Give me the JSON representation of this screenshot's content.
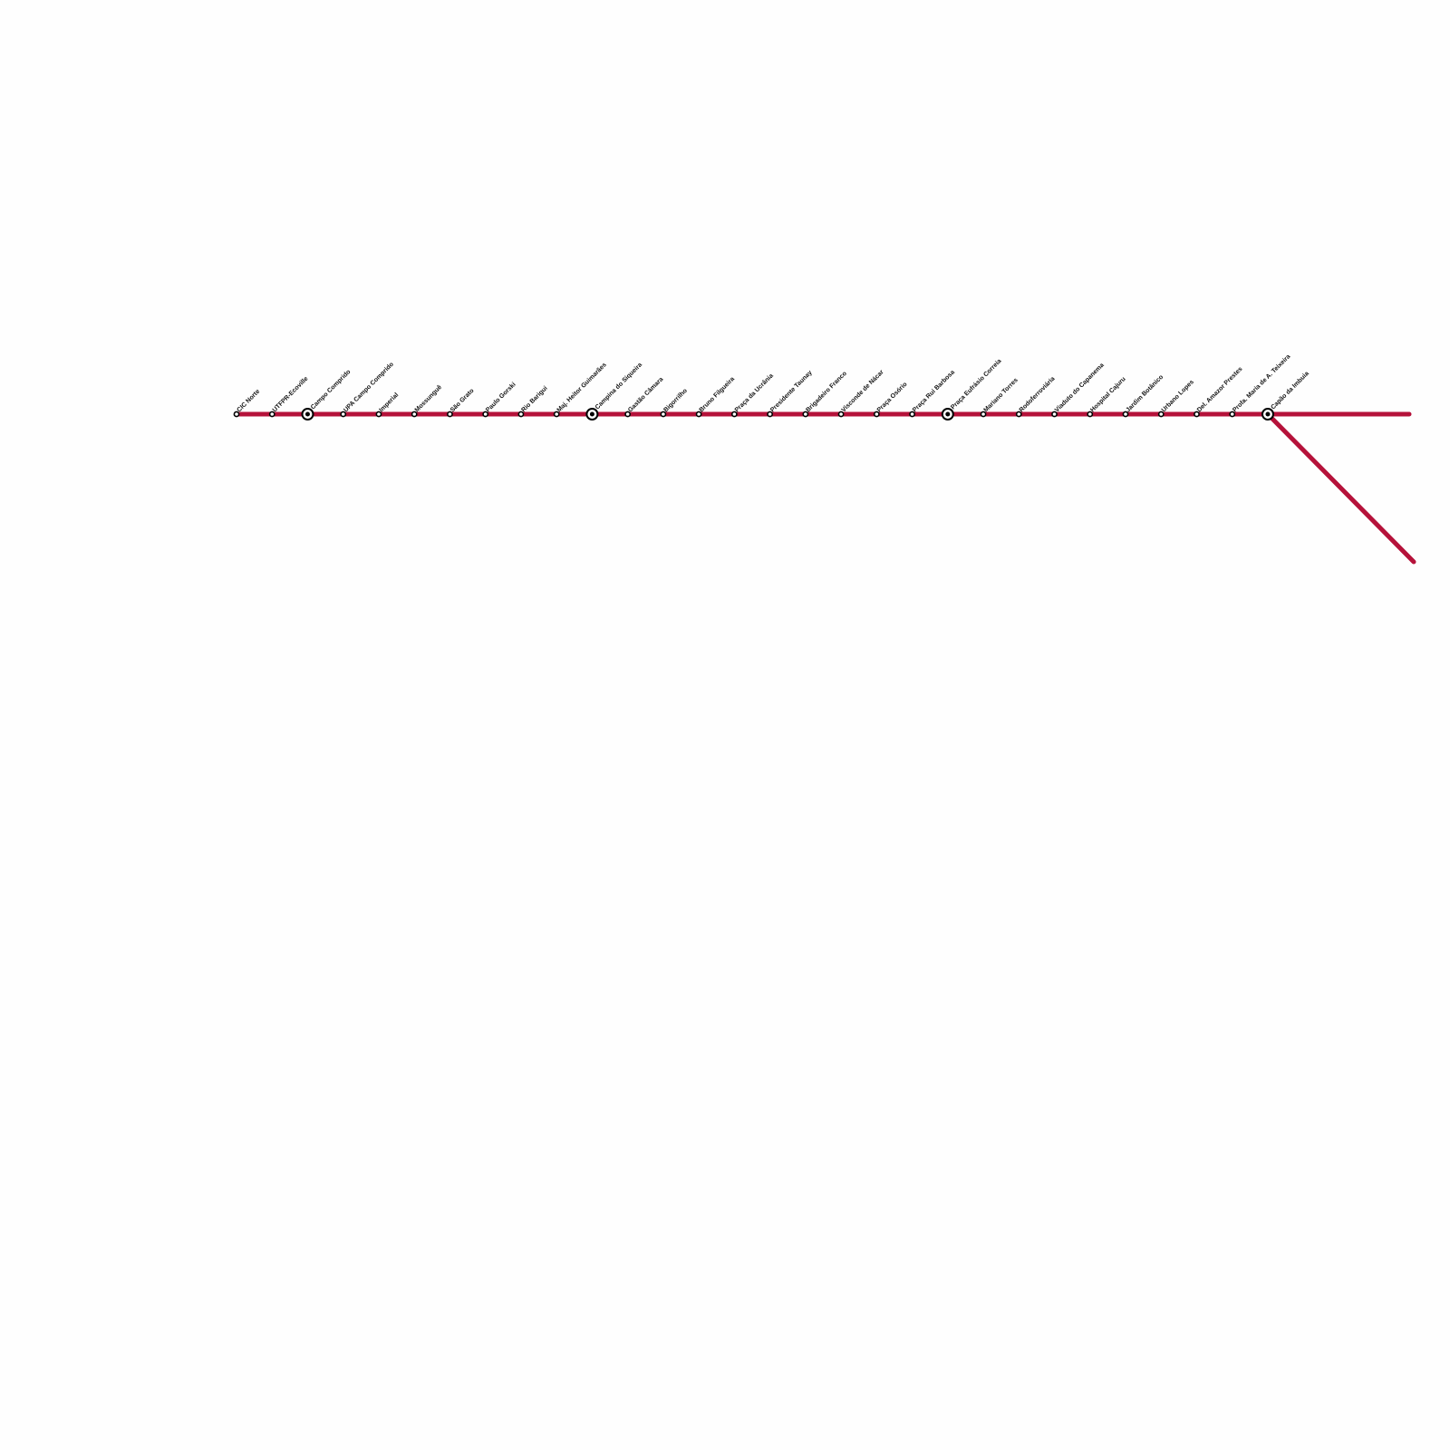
{
  "line": {
    "color": "#b5123a",
    "stations": [
      {
        "name": "CIC Norte",
        "interchange": false
      },
      {
        "name": "UTFPR-Ecoville",
        "interchange": false
      },
      {
        "name": "Campo Comprido",
        "interchange": true
      },
      {
        "name": "UPA Campo Comprido",
        "interchange": false
      },
      {
        "name": "Imperial",
        "interchange": false
      },
      {
        "name": "Mossunguê",
        "interchange": false
      },
      {
        "name": "São Grato",
        "interchange": false
      },
      {
        "name": "Paulo Gorski",
        "interchange": false
      },
      {
        "name": "Rio Barigui",
        "interchange": false
      },
      {
        "name": "Maj. Heitor Guimarães",
        "interchange": false
      },
      {
        "name": "Campina do Siqueira",
        "interchange": true
      },
      {
        "name": "Gastão Câmara",
        "interchange": false
      },
      {
        "name": "Bigorrilho",
        "interchange": false
      },
      {
        "name": "Bruno Filgueira",
        "interchange": false
      },
      {
        "name": "Praça da Ucrânia",
        "interchange": false
      },
      {
        "name": "Presidente Taunay",
        "interchange": false
      },
      {
        "name": "Brigadeiro Franco",
        "interchange": false
      },
      {
        "name": "Visconde de Nácar",
        "interchange": false
      },
      {
        "name": "Praça Osório",
        "interchange": false
      },
      {
        "name": "Praça Rui Barbosa",
        "interchange": false
      },
      {
        "name": "Praça Eufrásio Correia",
        "interchange": true
      },
      {
        "name": "Mariano Torres",
        "interchange": false
      },
      {
        "name": "Rodoferroviária",
        "interchange": false
      },
      {
        "name": "Viaduto do Capanema",
        "interchange": false
      },
      {
        "name": "Hospital Cajuru",
        "interchange": false
      },
      {
        "name": "Jardim Botânico",
        "interchange": false
      },
      {
        "name": "Urbano Lopes",
        "interchange": false
      },
      {
        "name": "Del. Amazor Prestes",
        "interchange": false
      },
      {
        "name": "Profa. Maria de A. Teixeira",
        "interchange": false
      },
      {
        "name": "Capão da Imbuia",
        "interchange": true
      }
    ]
  }
}
